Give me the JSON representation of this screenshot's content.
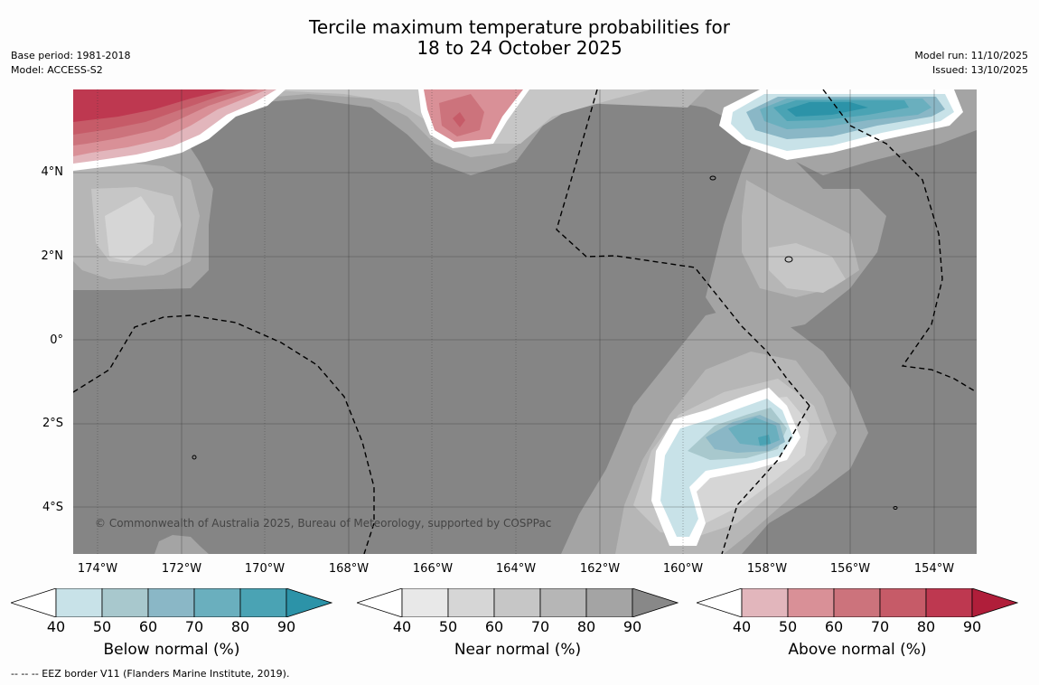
{
  "title": {
    "line1": "Tercile maximum temperature probabilities for",
    "line2": "18 to 24 October 2025"
  },
  "meta_left": {
    "base_period": "Base period: 1981-2018",
    "model": "Model: ACCESS-S2"
  },
  "meta_right": {
    "model_run": "Model run: 11/10/2025",
    "issued": "Issued: 13/10/2025"
  },
  "map": {
    "latitude_labels": [
      "4°N",
      "2°N",
      "0°",
      "2°S",
      "4°S"
    ],
    "longitude_labels": [
      "174°W",
      "172°W",
      "170°W",
      "168°W",
      "166°W",
      "164°W",
      "162°W",
      "160°W",
      "158°W",
      "156°W",
      "154°W"
    ],
    "copyright": "© Commonwealth of Australia 2025, Bureau of Meteorology, supported by COSPPac",
    "background_color": "#858585",
    "eez_line_color": "#000000"
  },
  "colorbars": {
    "below": {
      "title": "Below normal (%)",
      "ticks": [
        "40",
        "50",
        "60",
        "70",
        "80",
        "90"
      ],
      "colors": [
        "#ffffff",
        "#c8e2e8",
        "#a8c8cd",
        "#8ab7c6",
        "#6aafbe",
        "#4aa3b4",
        "#2c93a8"
      ]
    },
    "near": {
      "title": "Near normal (%)",
      "ticks": [
        "40",
        "50",
        "60",
        "70",
        "80",
        "90"
      ],
      "colors": [
        "#ffffff",
        "#e8e8e8",
        "#d6d6d6",
        "#c6c6c6",
        "#b6b6b6",
        "#a4a4a4",
        "#888888"
      ]
    },
    "above": {
      "title": "Above normal (%)",
      "ticks": [
        "40",
        "50",
        "60",
        "70",
        "80",
        "90"
      ],
      "colors": [
        "#ffffff",
        "#e2b6bc",
        "#d99097",
        "#cc737c",
        "#c65b68",
        "#be3850",
        "#b01e3a"
      ]
    }
  },
  "footnote": "--  --  -- EEZ border V11 (Flanders Marine Institute, 2019)."
}
